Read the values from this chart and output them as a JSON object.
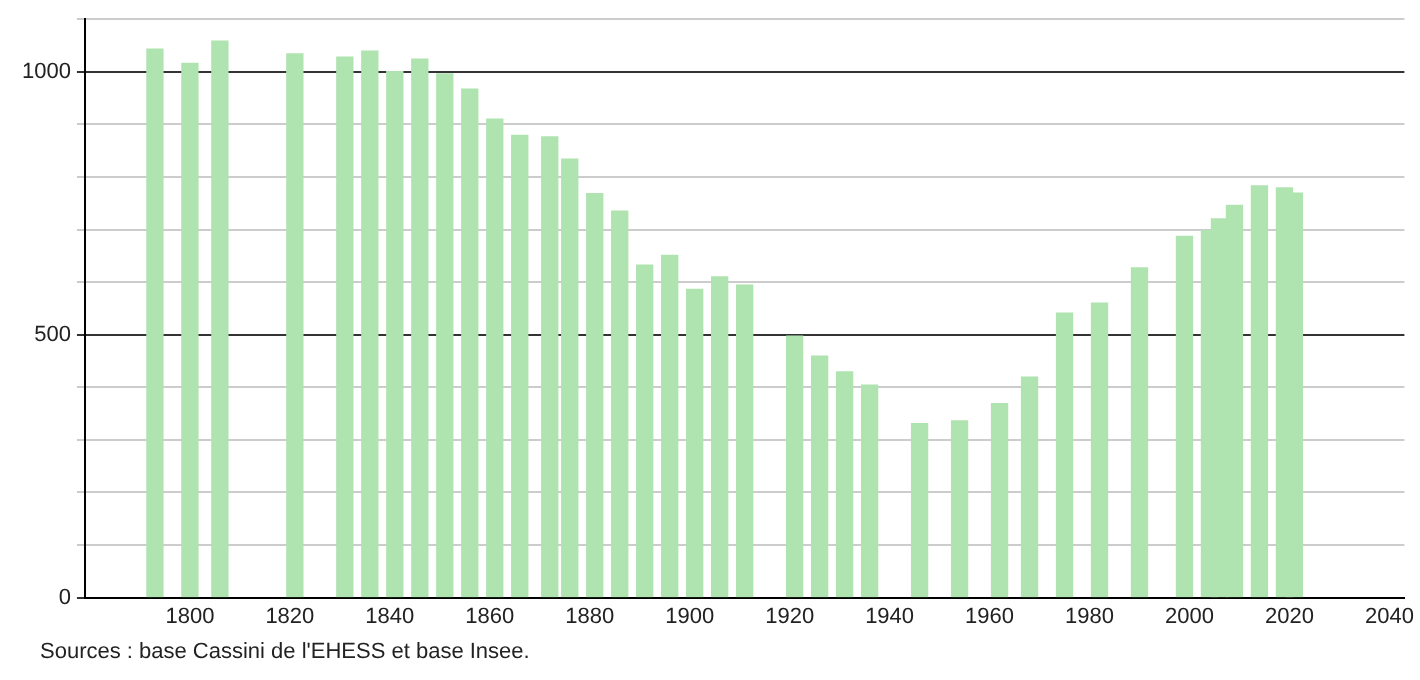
{
  "chart_data": {
    "type": "bar",
    "color": "#afe3b0",
    "x": [
      1793,
      1800,
      1806,
      1821,
      1831,
      1836,
      1841,
      1846,
      1851,
      1856,
      1861,
      1866,
      1872,
      1876,
      1881,
      1886,
      1891,
      1896,
      1901,
      1906,
      1911,
      1921,
      1926,
      1931,
      1936,
      1946,
      1954,
      1962,
      1968,
      1975,
      1982,
      1990,
      1999,
      2004,
      2006,
      2009,
      2014,
      2019,
      2021
    ],
    "values": [
      1043,
      1016,
      1058,
      1034,
      1028,
      1039,
      1000,
      1024,
      996,
      967,
      910,
      879,
      876,
      834,
      768,
      735,
      632,
      651,
      586,
      610,
      594,
      497,
      459,
      429,
      404,
      331,
      336,
      369,
      419,
      541,
      560,
      627,
      687,
      698,
      720,
      746,
      783,
      779,
      769
    ],
    "xlim": [
      1779,
      2043
    ],
    "xticks": [
      1800,
      1820,
      1840,
      1860,
      1880,
      1900,
      1920,
      1940,
      1960,
      1980,
      2000,
      2020,
      2040
    ],
    "ylim": [
      0,
      1100
    ],
    "yticks": [
      0,
      {
        "value": 100,
        "label": null
      },
      {
        "value": 200,
        "label": null
      },
      {
        "value": 300,
        "label": null
      },
      {
        "value": 400,
        "label": null
      },
      500,
      {
        "value": 600,
        "label": null
      },
      {
        "value": 700,
        "label": null
      },
      {
        "value": 800,
        "label": null
      },
      {
        "value": 900,
        "label": null
      },
      1000,
      {
        "value": 1100,
        "label": null
      }
    ],
    "grid": "y",
    "legend": false,
    "annotations": [
      "Sources : base Cassini de l'EHESS et base Insee."
    ]
  }
}
